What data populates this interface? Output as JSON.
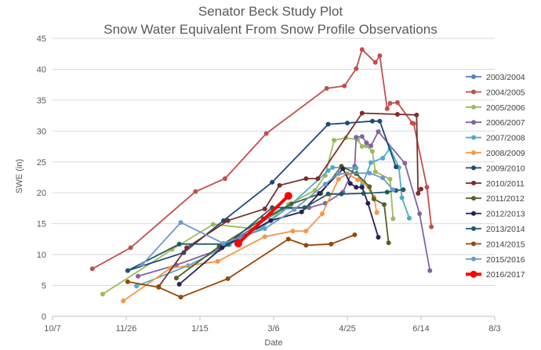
{
  "chart_data": {
    "type": "line",
    "title": "Senator Beck Study Plot",
    "subtitle": "Snow Water Equivalent From Snow Profile Observations",
    "xlabel": "Date",
    "ylabel": "SWE (in)",
    "x_ticks": [
      "10/7",
      "11/26",
      "1/15",
      "3/6",
      "4/25",
      "6/14",
      "8/3"
    ],
    "y_ticks": [
      "0",
      "5",
      "10",
      "15",
      "20",
      "25",
      "30",
      "35",
      "40",
      "45"
    ],
    "xlim": [
      "10/7",
      "8/3"
    ],
    "ylim": [
      0,
      45
    ],
    "grid": "horizontal",
    "legend_position": "right",
    "series": [
      {
        "name": "2003/2004",
        "color": "#4f81bd",
        "x": [],
        "y": []
      },
      {
        "name": "2004/2005",
        "color": "#c0504d",
        "x": [
          "11/3",
          "11/29",
          "1/12",
          "2/1",
          "3/1",
          "4/11",
          "4/23",
          "5/1",
          "5/5",
          "5/14",
          "5/17",
          "5/22",
          "5/24",
          "5/29",
          "6/8",
          "6/9",
          "6/18",
          "6/21"
        ],
        "y": [
          7.7,
          11.1,
          20.2,
          22.3,
          29.6,
          36.9,
          37.3,
          40.1,
          43.2,
          41.1,
          42.2,
          33.6,
          34.5,
          34.6,
          31.3,
          31.2,
          20.9,
          14.5
        ]
      },
      {
        "name": "2005/2006",
        "color": "#9bbb59",
        "x": [
          "11/10",
          "12/27",
          "1/24",
          "2/24",
          "3/16",
          "4/3",
          "4/10",
          "4/16",
          "4/24",
          "5/2",
          "5/5",
          "5/8",
          "5/12",
          "5/14",
          "5/24",
          "5/26"
        ],
        "y": [
          3.6,
          10.8,
          14.9,
          14.1,
          18.1,
          20.4,
          22.8,
          28.5,
          28.9,
          28.6,
          27.5,
          27.6,
          26.7,
          23.4,
          22.2,
          15.8
        ]
      },
      {
        "name": "2006/2007",
        "color": "#8064a2",
        "x": [
          "12/4",
          "12/30",
          "1/28",
          "3/12",
          "3/30",
          "4/10",
          "4/22",
          "4/30",
          "5/1",
          "5/5",
          "5/8",
          "5/11",
          "5/16",
          "6/3",
          "6/13",
          "6/20"
        ],
        "y": [
          6.5,
          8.3,
          10.8,
          17.4,
          17.6,
          18.3,
          20.1,
          24.3,
          29.0,
          29.1,
          28.1,
          27.6,
          29.9,
          24.8,
          16.6,
          7.4
        ]
      },
      {
        "name": "2007/2008",
        "color": "#4bacc6",
        "x": [
          "12/3",
          "1/7",
          "2/4",
          "2/25",
          "3/16",
          "4/12",
          "4/15",
          "5/1",
          "5/5",
          "5/11",
          "5/19",
          "5/24",
          "5/30",
          "6/1",
          "6/6"
        ],
        "y": [
          4.9,
          8.2,
          11.6,
          14.2,
          17.7,
          23.6,
          24.1,
          24.0,
          21.2,
          24.9,
          25.6,
          27.2,
          24.1,
          19.2,
          15.9
        ]
      },
      {
        "name": "2008/2009",
        "color": "#f79646",
        "x": [
          "11/24",
          "12/26",
          "1/27",
          "2/28",
          "3/19",
          "3/28",
          "4/8",
          "4/19",
          "4/25",
          "5/2",
          "5/6",
          "5/13",
          "5/15"
        ],
        "y": [
          2.5,
          7.8,
          8.9,
          12.9,
          13.8,
          13.8,
          16.6,
          22.2,
          23.1,
          22.1,
          21.8,
          19.3,
          16.8
        ]
      },
      {
        "name": "2009/2010",
        "color": "#1f497d",
        "x": [
          "11/27",
          "1/4",
          "1/31",
          "3/5",
          "4/12",
          "4/25",
          "5/12",
          "5/17",
          "5/28"
        ],
        "y": [
          7.4,
          10.3,
          15.5,
          21.7,
          31.1,
          31.3,
          31.6,
          31.6,
          24.2
        ]
      },
      {
        "name": "2010/2011",
        "color": "#7b2e2b",
        "x": [
          "12/18",
          "1/6",
          "2/3",
          "2/28",
          "3/10",
          "3/28",
          "4/5",
          "5/5",
          "5/29",
          "6/11",
          "6/12",
          "6/14"
        ],
        "y": [
          4.8,
          11.1,
          15.5,
          17.4,
          21.2,
          22.3,
          22.3,
          32.9,
          32.7,
          32.6,
          19.9,
          20.6
        ]
      },
      {
        "name": "2011/2012",
        "color": "#4f6228",
        "x": [
          "12/30",
          "1/28",
          "2/27",
          "3/18",
          "4/7",
          "4/21",
          "5/1",
          "5/10",
          "5/13",
          "5/20",
          "5/23"
        ],
        "y": [
          6.2,
          11.3,
          15.8,
          18.2,
          19.9,
          24.3,
          23.1,
          21.0,
          19.0,
          18.1,
          11.9
        ]
      },
      {
        "name": "2012/2013",
        "color": "#272052",
        "x": [
          "1/1",
          "1/30",
          "3/4",
          "3/25",
          "4/6",
          "4/22",
          "4/27",
          "5/1",
          "5/5",
          "5/9",
          "5/16"
        ],
        "y": [
          5.2,
          11.1,
          15.5,
          16.9,
          19.9,
          23.9,
          21.5,
          20.9,
          20.9,
          18.3,
          12.8
        ]
      },
      {
        "name": "2013/2014",
        "color": "#215968",
        "x": [
          "11/27",
          "1/1",
          "2/3",
          "3/5",
          "3/27",
          "4/12",
          "4/21",
          "5/6",
          "5/22",
          "5/28",
          "6/2"
        ],
        "y": [
          7.4,
          11.7,
          11.7,
          17.6,
          17.6,
          19.8,
          19.8,
          19.9,
          20.1,
          20.4,
          20.5
        ]
      },
      {
        "name": "2014/2015",
        "color": "#984807",
        "x": [
          "11/27",
          "12/18",
          "1/2",
          "2/3",
          "3/16",
          "3/28",
          "4/14",
          "4/30"
        ],
        "y": [
          5.6,
          4.7,
          3.1,
          6.1,
          12.5,
          11.5,
          11.7,
          13.2
        ]
      },
      {
        "name": "2015/2016",
        "color": "#6d98cf",
        "x": [
          "12/7",
          "1/2",
          "1/31",
          "2/28",
          "3/20",
          "4/10",
          "4/19",
          "5/10",
          "5/19",
          "5/26"
        ],
        "y": [
          8.4,
          15.2,
          11.8,
          14.2,
          17.3,
          21.4,
          23.1,
          23.2,
          22.4,
          20.5
        ]
      },
      {
        "name": "2016/2017",
        "color": "#ff0000",
        "x": [
          "2/10",
          "3/16"
        ],
        "y": [
          11.8,
          19.5
        ]
      }
    ]
  }
}
